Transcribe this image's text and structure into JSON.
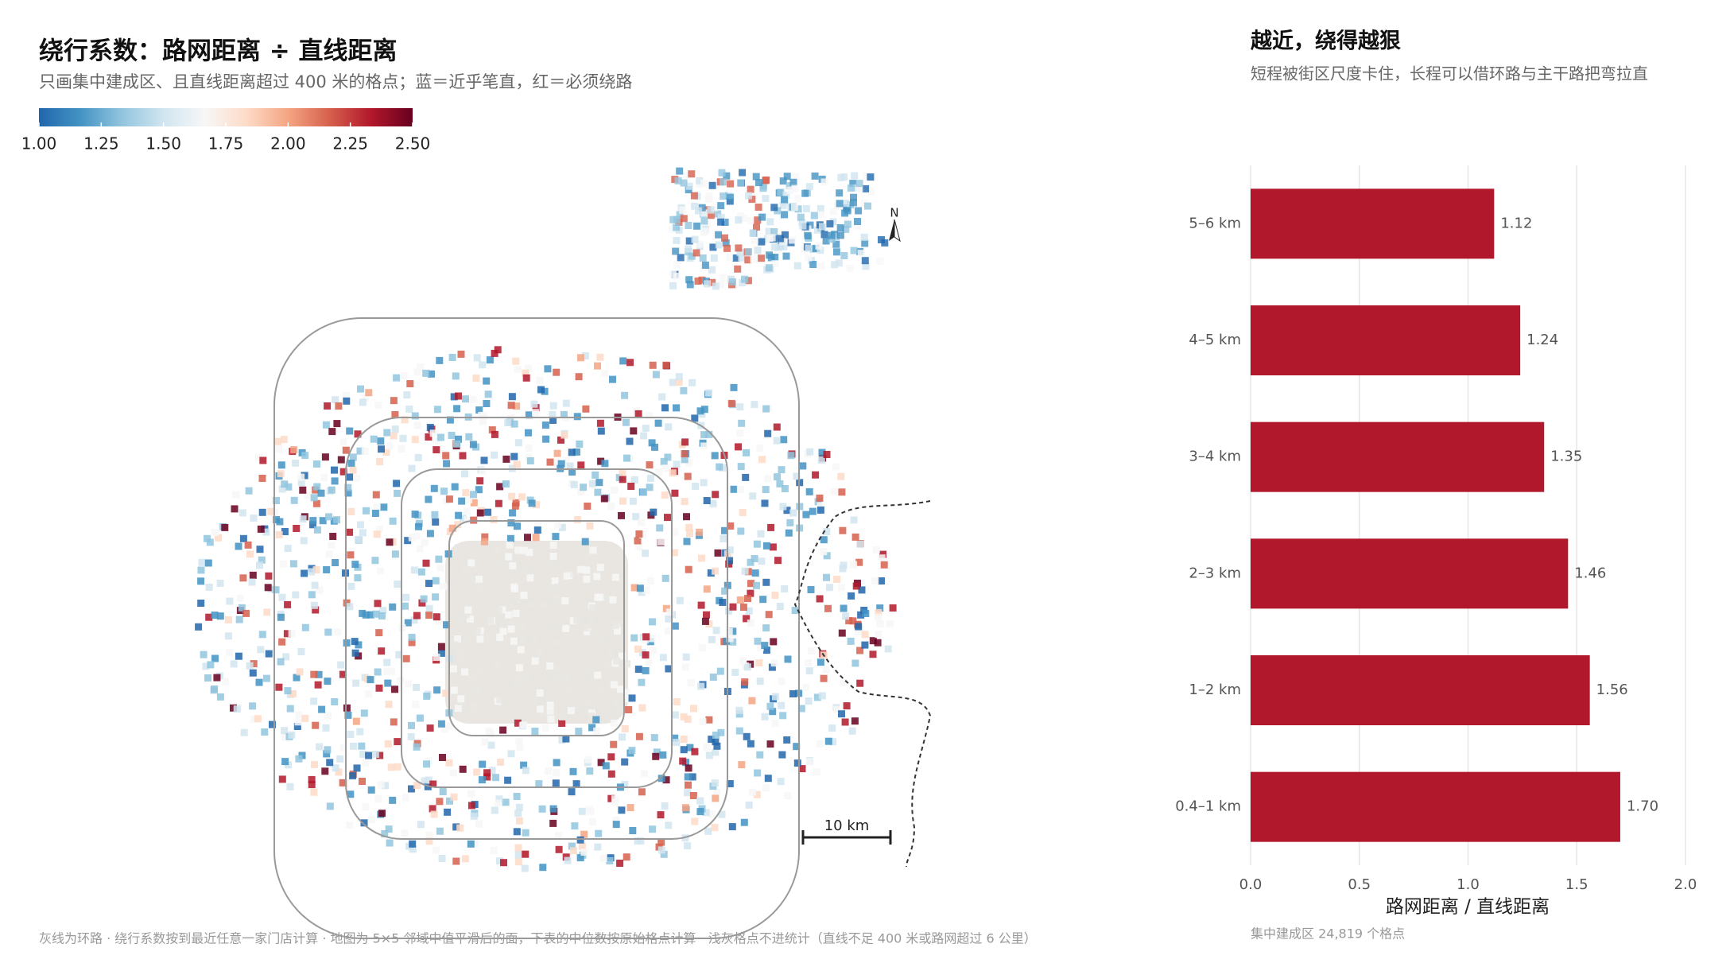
{
  "map": {
    "title": "绕行系数：路网距离 ÷ 直线距离",
    "subtitle": "只画集中建成区、且直线距离超过 400 米的格点；蓝＝近乎笔直，红＝必须绕路",
    "colorbar": {
      "lim": [
        1,
        2.5
      ],
      "colors": [
        "#2166ac",
        "#4393c3",
        "#92c5de",
        "#d1e5f0",
        "#f7f7f7",
        "#fddbc7",
        "#f4a582",
        "#d6604d",
        "#b2182b",
        "#67001f"
      ],
      "ticks": [
        {
          "value": 1,
          "label": "1.00"
        },
        {
          "value": 1.25,
          "label": "1.25"
        },
        {
          "value": 1.5,
          "label": "1.50"
        },
        {
          "value": 1.75,
          "label": "1.75"
        },
        {
          "value": 2,
          "label": "2.00"
        },
        {
          "value": 2.25,
          "label": "2.25"
        },
        {
          "value": 2.5,
          "label": "2.50"
        }
      ]
    },
    "north": "N",
    "scale_label": "10 km"
  },
  "chart_data": {
    "type": "bar",
    "orientation": "horizontal",
    "title": "越近，绕得越狠",
    "subtitle": "短程被街区尺度卡住，长程可以借环路与主干路把弯拉直",
    "categories": [
      "5–6 km",
      "4–5 km",
      "3–4 km",
      "2–3 km",
      "1–2 km",
      "0.4–1 km"
    ],
    "values": [
      1.12,
      1.24,
      1.35,
      1.46,
      1.56,
      1.7
    ],
    "value_labels": [
      "1.12",
      "1.24",
      "1.35",
      "1.46",
      "1.56",
      "1.70"
    ],
    "color": "#b2182b",
    "xlim": [
      0,
      2
    ],
    "xticks": [
      {
        "value": 0,
        "label": "0.0"
      },
      {
        "value": 0.5,
        "label": "0.5"
      },
      {
        "value": 1,
        "label": "1.0"
      },
      {
        "value": 1.5,
        "label": "1.5"
      },
      {
        "value": 2,
        "label": "2.0"
      }
    ],
    "xlabel": "路网距离 / 直线距离",
    "grid": true,
    "note": "集中建成区 24,819 个格点"
  },
  "footnote": "灰线为环路 · 绕行系数按到最近任意一家门店计算 · 地图为 5×5 邻域中值平滑后的面，下表的中位数按原始格点计算 · 浅灰格点不进统计（直线不足 400 米或路网超过 6 公里）"
}
